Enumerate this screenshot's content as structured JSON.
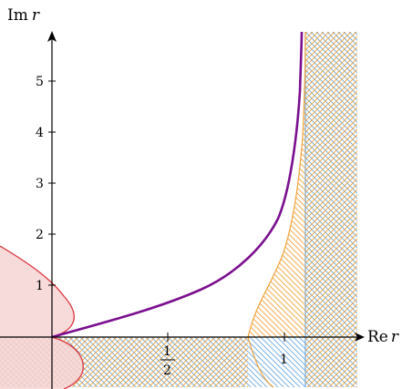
{
  "axes": {
    "x_label_prefix": "Re",
    "x_label_var": "r",
    "y_label_prefix": "Im",
    "y_label_var": "r"
  },
  "ticks": {
    "y": [
      "1",
      "2",
      "3",
      "4",
      "5"
    ],
    "x_half_num": "1",
    "x_half_den": "2",
    "x_one": "1"
  },
  "colors": {
    "purple_curve": "#7b0f8f",
    "red_region": "#d9343c",
    "red_fill": "#f6d3d3",
    "orange_hatch": "#f2a23a",
    "blue_hatch": "#6aa6e0"
  }
}
